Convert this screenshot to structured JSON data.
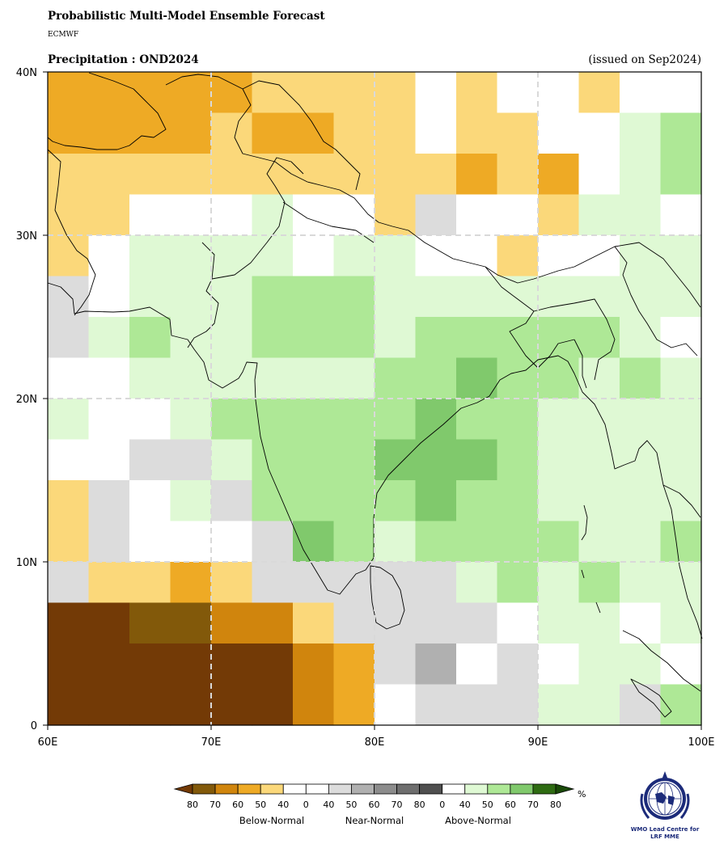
{
  "header": {
    "title": "Probabilistic Multi-Model Ensemble Forecast",
    "organization": "ECMWF",
    "subtitle": "Precipitation : OND2024",
    "issued": "(issued on Sep2024)"
  },
  "map": {
    "region": "South Asia",
    "lat_range": [
      0,
      40
    ],
    "lon_range": [
      60,
      100
    ],
    "cell_size_deg": 2.5,
    "x_ticks": [
      "60E",
      "70E",
      "80E",
      "90E",
      "100E"
    ],
    "y_ticks": [
      "0",
      "10N",
      "20N",
      "30N",
      "40N"
    ],
    "gridlines": "dashed, every 10 degrees",
    "color_codes": {
      "W": "#ffffff",
      "B4": "#fbd87a",
      "B5": "#eeaa25",
      "B6": "#d0850d",
      "B7": "#82590a",
      "B8": "#733a06",
      "N4": "#dcdcdc",
      "N5": "#b0b0b0",
      "A4": "#dff9d4",
      "A5": "#aee896",
      "A6": "#80c96c"
    },
    "grid_rows_north_to_south": [
      [
        "B5",
        "B5",
        "B5",
        "B5",
        "B5",
        "B4",
        "B4",
        "B4",
        "B4",
        "W",
        "B4",
        "W",
        "W",
        "B4",
        "W",
        "W"
      ],
      [
        "B5",
        "B5",
        "B5",
        "B5",
        "B4",
        "B5",
        "B5",
        "B4",
        "B4",
        "W",
        "B4",
        "B4",
        "W",
        "W",
        "A4",
        "A5"
      ],
      [
        "B4",
        "B4",
        "B4",
        "B4",
        "B4",
        "B4",
        "B4",
        "B4",
        "B4",
        "B4",
        "B5",
        "B4",
        "B5",
        "W",
        "A4",
        "A5"
      ],
      [
        "B4",
        "B4",
        "W",
        "W",
        "W",
        "A4",
        "W",
        "W",
        "B4",
        "N4",
        "W",
        "W",
        "B4",
        "A4",
        "A4",
        "W"
      ],
      [
        "B4",
        "W",
        "A4",
        "A4",
        "A4",
        "A4",
        "W",
        "A4",
        "A4",
        "W",
        "W",
        "B4",
        "W",
        "W",
        "A4",
        "A4"
      ],
      [
        "N4",
        "W",
        "A4",
        "A4",
        "A4",
        "A5",
        "A5",
        "A5",
        "A4",
        "A4",
        "A4",
        "A4",
        "A4",
        "A4",
        "A4",
        "A4"
      ],
      [
        "N4",
        "A4",
        "A5",
        "A4",
        "A4",
        "A5",
        "A5",
        "A5",
        "A4",
        "A5",
        "A5",
        "A5",
        "A5",
        "A5",
        "A4",
        "W"
      ],
      [
        "W",
        "W",
        "A4",
        "A4",
        "A4",
        "A4",
        "A4",
        "A4",
        "A5",
        "A5",
        "A6",
        "A5",
        "A5",
        "A4",
        "A5",
        "A4"
      ],
      [
        "A4",
        "W",
        "W",
        "A4",
        "A5",
        "A5",
        "A5",
        "A5",
        "A5",
        "A6",
        "A5",
        "A5",
        "A4",
        "A4",
        "A4",
        "A4"
      ],
      [
        "W",
        "W",
        "N4",
        "N4",
        "A4",
        "A5",
        "A5",
        "A5",
        "A6",
        "A6",
        "A6",
        "A5",
        "A4",
        "A4",
        "A4",
        "A4"
      ],
      [
        "B4",
        "N4",
        "W",
        "A4",
        "N4",
        "A5",
        "A5",
        "A5",
        "A5",
        "A6",
        "A5",
        "A5",
        "A4",
        "A4",
        "A4",
        "A4"
      ],
      [
        "B4",
        "N4",
        "W",
        "W",
        "W",
        "N4",
        "A6",
        "A5",
        "A4",
        "A5",
        "A5",
        "A5",
        "A5",
        "A4",
        "A4",
        "A5"
      ],
      [
        "N4",
        "B4",
        "B4",
        "B5",
        "B4",
        "N4",
        "N4",
        "N4",
        "N4",
        "N4",
        "A4",
        "A5",
        "A4",
        "A5",
        "A4",
        "A4"
      ],
      [
        "B8",
        "B8",
        "B7",
        "B7",
        "B6",
        "B6",
        "B4",
        "N4",
        "N4",
        "N4",
        "N4",
        "W",
        "A4",
        "A4",
        "W",
        "A4"
      ],
      [
        "B8",
        "B8",
        "B8",
        "B8",
        "B8",
        "B8",
        "B6",
        "B5",
        "N4",
        "N5",
        "W",
        "N4",
        "W",
        "A4",
        "A4",
        "W"
      ],
      [
        "B8",
        "B8",
        "B8",
        "B8",
        "B8",
        "B8",
        "B6",
        "B5",
        "W",
        "N4",
        "N4",
        "N4",
        "A4",
        "A4",
        "N4",
        "A5"
      ]
    ]
  },
  "colorbar": {
    "unit": "%",
    "segments": [
      {
        "color": "#82590a",
        "label": "80"
      },
      {
        "color": "#d0850d",
        "label": "70"
      },
      {
        "color": "#eeaa25",
        "label": "60"
      },
      {
        "color": "#fbd87a",
        "label": "50"
      },
      {
        "color": "#ffffff",
        "label": "40"
      },
      {
        "color": "#ffffff",
        "label": "0"
      },
      {
        "color": "#dcdcdc",
        "label": "40"
      },
      {
        "color": "#b0b0b0",
        "label": "50"
      },
      {
        "color": "#8c8c8c",
        "label": "60"
      },
      {
        "color": "#6e6e6e",
        "label": "70"
      },
      {
        "color": "#4f4f4f",
        "label": "80"
      },
      {
        "color": "#ffffff",
        "label": "0"
      },
      {
        "color": "#dff9d4",
        "label": "40"
      },
      {
        "color": "#aee896",
        "label": "50"
      },
      {
        "color": "#80c96c",
        "label": "60"
      },
      {
        "color": "#2e6b12",
        "label": "70"
      }
    ],
    "last_label": "80",
    "left_arrow_color": "#733a06",
    "right_arrow_color": "#1a4a08",
    "categories": [
      "Below-Normal",
      "Near-Normal",
      "Above-Normal"
    ]
  },
  "logo": {
    "name": "WMO emblem",
    "text_line1": "WMO Lead Centre for",
    "text_line2": "LRF MME"
  }
}
